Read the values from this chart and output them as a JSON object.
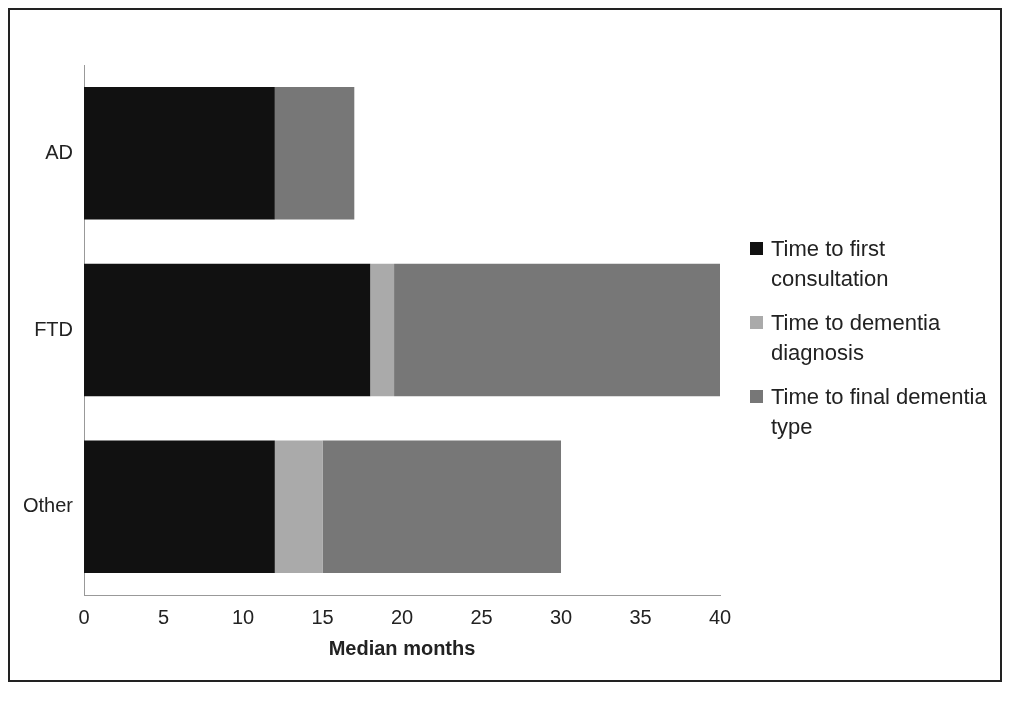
{
  "chart_data": {
    "type": "bar",
    "orientation": "horizontal",
    "stacked": true,
    "categories": [
      "AD",
      "FTD",
      "Other"
    ],
    "series": [
      {
        "name": "Time to first consultation",
        "color": "#111111",
        "values": [
          12,
          18,
          12
        ]
      },
      {
        "name": "Time to dementia diagnosis",
        "color": "#aaaaaa",
        "values": [
          null,
          1.5,
          3
        ]
      },
      {
        "name": "Time to final dementia type",
        "color": "#777777",
        "values": [
          5,
          20.5,
          15
        ]
      }
    ],
    "xlabel": "Median months",
    "xlim": [
      0,
      40
    ],
    "xticks": [
      0,
      5,
      10,
      15,
      20,
      25,
      30,
      35,
      40
    ],
    "grid": false,
    "legend": "right"
  }
}
